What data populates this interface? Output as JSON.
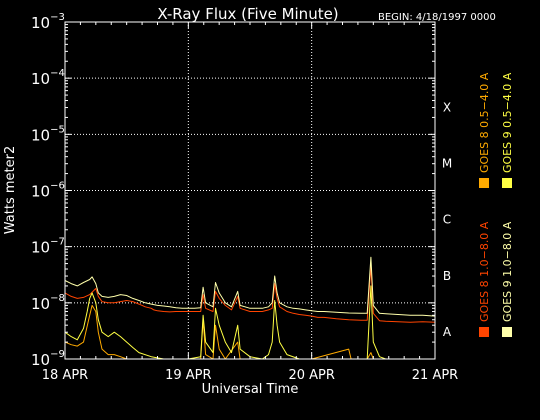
{
  "chart_data": {
    "type": "line",
    "title": "X-Ray Flux (Five Minute)",
    "begin_label": "BEGIN: 4/18/1997 0000",
    "xlabel": "Universal Time",
    "ylabel": "Watts meter2",
    "x_range_days": [
      0,
      3
    ],
    "x_ticks": [
      {
        "day": 0,
        "label": "18 APR"
      },
      {
        "day": 1,
        "label": "19 APR"
      },
      {
        "day": 2,
        "label": "20 APR"
      },
      {
        "day": 3,
        "label": "21 APR"
      }
    ],
    "y_scale": "log",
    "ylim": [
      1e-09,
      0.001
    ],
    "y_ticks": [
      {
        "exp": -3,
        "label": "10",
        "sup": "−3"
      },
      {
        "exp": -4,
        "label": "10",
        "sup": "−4"
      },
      {
        "exp": -5,
        "label": "10",
        "sup": "−5"
      },
      {
        "exp": -6,
        "label": "10",
        "sup": "−6"
      },
      {
        "exp": -7,
        "label": "10",
        "sup": "−7"
      },
      {
        "exp": -8,
        "label": "10",
        "sup": "−8"
      },
      {
        "exp": -9,
        "label": "10",
        "sup": "−9"
      }
    ],
    "flare_classes": [
      {
        "label": "X",
        "exp": -4
      },
      {
        "label": "M",
        "exp": -5
      },
      {
        "label": "C",
        "exp": -6
      },
      {
        "label": "B",
        "exp": -7
      },
      {
        "label": "A",
        "exp": -8
      }
    ],
    "grid": true,
    "series": [
      {
        "name": "GOES 8 1.0−8.0 A",
        "color": "#ff4400",
        "points": [
          [
            0.0,
            1.5e-08
          ],
          [
            0.05,
            1.3e-08
          ],
          [
            0.1,
            1.2e-08
          ],
          [
            0.15,
            1.25e-08
          ],
          [
            0.2,
            1.4e-08
          ],
          [
            0.25,
            1.8e-08
          ],
          [
            0.27,
            1.3e-08
          ],
          [
            0.3,
            1.05e-08
          ],
          [
            0.35,
            1e-08
          ],
          [
            0.4,
            1e-08
          ],
          [
            0.45,
            1.05e-08
          ],
          [
            0.5,
            1.1e-08
          ],
          [
            0.55,
            1.05e-08
          ],
          [
            0.6,
            9.5e-09
          ],
          [
            0.65,
            8.5e-09
          ],
          [
            0.7,
            8e-09
          ],
          [
            0.72,
            7.5e-09
          ],
          [
            0.75,
            7.2e-09
          ],
          [
            0.8,
            7e-09
          ],
          [
            0.85,
            6.9e-09
          ],
          [
            0.9,
            7e-09
          ],
          [
            0.95,
            7e-09
          ],
          [
            1.0,
            7e-09
          ],
          [
            1.05,
            7e-09
          ],
          [
            1.1,
            7e-09
          ],
          [
            1.12,
            1.4e-08
          ],
          [
            1.14,
            8e-09
          ],
          [
            1.2,
            7e-09
          ],
          [
            1.22,
            1.6e-08
          ],
          [
            1.25,
            1.2e-08
          ],
          [
            1.3,
            9e-09
          ],
          [
            1.35,
            7.5e-09
          ],
          [
            1.4,
            1.3e-08
          ],
          [
            1.42,
            8e-09
          ],
          [
            1.5,
            7e-09
          ],
          [
            1.55,
            7e-09
          ],
          [
            1.6,
            7e-09
          ],
          [
            1.65,
            7.5e-09
          ],
          [
            1.68,
            8e-09
          ],
          [
            1.7,
            2.2e-08
          ],
          [
            1.72,
            1.2e-08
          ],
          [
            1.74,
            8.5e-09
          ],
          [
            1.8,
            7e-09
          ],
          [
            1.85,
            6.5e-09
          ],
          [
            1.9,
            6.2e-09
          ],
          [
            1.95,
            6e-09
          ],
          [
            2.0,
            5.8e-09
          ],
          [
            2.05,
            5.5e-09
          ],
          [
            2.1,
            5.5e-09
          ],
          [
            2.2,
            5.2e-09
          ],
          [
            2.3,
            5e-09
          ],
          [
            2.4,
            4.9e-09
          ],
          [
            2.45,
            4.9e-09
          ],
          [
            2.48,
            4.5e-08
          ],
          [
            2.5,
            6.5e-09
          ],
          [
            2.55,
            4.8e-09
          ],
          [
            2.6,
            4.7e-09
          ],
          [
            2.7,
            4.6e-09
          ],
          [
            2.8,
            4.5e-09
          ],
          [
            2.9,
            4.6e-09
          ],
          [
            3.0,
            4.5e-09
          ]
        ]
      },
      {
        "name": "GOES 8 0.5−4.0 A",
        "color": "#ffaa00",
        "points": [
          [
            0.0,
            2e-09
          ],
          [
            0.05,
            1.8e-09
          ],
          [
            0.1,
            1.7e-09
          ],
          [
            0.15,
            2e-09
          ],
          [
            0.2,
            6e-09
          ],
          [
            0.22,
            9e-09
          ],
          [
            0.25,
            7e-09
          ],
          [
            0.27,
            3e-09
          ],
          [
            0.3,
            1.5e-09
          ],
          [
            0.35,
            1.2e-09
          ],
          [
            0.4,
            1.2e-09
          ],
          [
            0.45,
            1.1e-09
          ],
          [
            0.5,
            1e-09
          ],
          [
            0.6,
            1e-09
          ],
          [
            0.7,
            1e-09
          ],
          [
            0.8,
            1e-09
          ],
          [
            0.9,
            1e-09
          ],
          [
            1.0,
            1e-09
          ],
          [
            1.1,
            1e-09
          ],
          [
            1.12,
            5e-09
          ],
          [
            1.14,
            1.2e-09
          ],
          [
            1.2,
            1e-09
          ],
          [
            1.22,
            4e-09
          ],
          [
            1.25,
            1.5e-09
          ],
          [
            1.3,
            1e-09
          ],
          [
            1.4,
            2e-09
          ],
          [
            1.42,
            1e-09
          ],
          [
            1.5,
            1e-09
          ],
          [
            1.7,
            1e-09
          ],
          [
            1.72,
            1e-09
          ],
          [
            1.8,
            1e-09
          ],
          [
            1.9,
            1e-09
          ],
          [
            2.0,
            1e-09
          ],
          [
            2.3,
            1.5e-09
          ],
          [
            2.32,
            1e-09
          ],
          [
            2.45,
            1e-09
          ],
          [
            2.48,
            1.3e-09
          ],
          [
            2.5,
            1e-09
          ],
          [
            3.0,
            1e-09
          ]
        ]
      },
      {
        "name": "GOES 9 1.0−8.0 A",
        "color": "#ffffaa",
        "points": [
          [
            0.0,
            2.5e-08
          ],
          [
            0.05,
            2.2e-08
          ],
          [
            0.1,
            2e-08
          ],
          [
            0.15,
            2.3e-08
          ],
          [
            0.2,
            2.6e-08
          ],
          [
            0.22,
            2.9e-08
          ],
          [
            0.25,
            2.2e-08
          ],
          [
            0.27,
            1.5e-08
          ],
          [
            0.3,
            1.3e-08
          ],
          [
            0.35,
            1.25e-08
          ],
          [
            0.4,
            1.3e-08
          ],
          [
            0.45,
            1.4e-08
          ],
          [
            0.5,
            1.35e-08
          ],
          [
            0.55,
            1.2e-08
          ],
          [
            0.6,
            1.1e-08
          ],
          [
            0.65,
            1e-08
          ],
          [
            0.7,
            9.5e-09
          ],
          [
            0.75,
            9e-09
          ],
          [
            0.8,
            8.8e-09
          ],
          [
            0.85,
            8.5e-09
          ],
          [
            0.9,
            8.2e-09
          ],
          [
            0.95,
            8e-09
          ],
          [
            1.0,
            8e-09
          ],
          [
            1.05,
            8e-09
          ],
          [
            1.1,
            8.2e-09
          ],
          [
            1.12,
            1.9e-08
          ],
          [
            1.14,
            1e-08
          ],
          [
            1.2,
            8.5e-09
          ],
          [
            1.22,
            2.3e-08
          ],
          [
            1.25,
            1.5e-08
          ],
          [
            1.3,
            1e-08
          ],
          [
            1.35,
            8.5e-09
          ],
          [
            1.4,
            1.6e-08
          ],
          [
            1.42,
            9e-09
          ],
          [
            1.5,
            8e-09
          ],
          [
            1.55,
            8e-09
          ],
          [
            1.6,
            8e-09
          ],
          [
            1.65,
            8.5e-09
          ],
          [
            1.68,
            1e-08
          ],
          [
            1.7,
            3e-08
          ],
          [
            1.72,
            1.5e-08
          ],
          [
            1.74,
            1e-08
          ],
          [
            1.8,
            8.5e-09
          ],
          [
            1.85,
            8e-09
          ],
          [
            1.9,
            7.8e-09
          ],
          [
            1.95,
            7.5e-09
          ],
          [
            2.0,
            7.2e-09
          ],
          [
            2.05,
            7e-09
          ],
          [
            2.1,
            7e-09
          ],
          [
            2.2,
            6.8e-09
          ],
          [
            2.3,
            6.6e-09
          ],
          [
            2.4,
            6.5e-09
          ],
          [
            2.45,
            6.5e-09
          ],
          [
            2.48,
            6.5e-08
          ],
          [
            2.5,
            9e-09
          ],
          [
            2.55,
            6.5e-09
          ],
          [
            2.6,
            6.4e-09
          ],
          [
            2.7,
            6.2e-09
          ],
          [
            2.8,
            6e-09
          ],
          [
            2.9,
            6e-09
          ],
          [
            3.0,
            5.8e-09
          ]
        ]
      },
      {
        "name": "GOES 9 0.5−4.0 A",
        "color": "#ffff44",
        "points": [
          [
            0.0,
            3e-09
          ],
          [
            0.05,
            2.5e-09
          ],
          [
            0.1,
            2.2e-09
          ],
          [
            0.15,
            3.5e-09
          ],
          [
            0.18,
            7e-09
          ],
          [
            0.2,
            1.2e-08
          ],
          [
            0.22,
            1.5e-08
          ],
          [
            0.25,
            1e-08
          ],
          [
            0.27,
            5e-09
          ],
          [
            0.3,
            3e-09
          ],
          [
            0.35,
            2.5e-09
          ],
          [
            0.4,
            3e-09
          ],
          [
            0.45,
            2.5e-09
          ],
          [
            0.5,
            2e-09
          ],
          [
            0.55,
            1.6e-09
          ],
          [
            0.6,
            1.3e-09
          ],
          [
            0.7,
            1.1e-09
          ],
          [
            0.8,
            1e-09
          ],
          [
            1.0,
            1e-09
          ],
          [
            1.1,
            1.1e-09
          ],
          [
            1.12,
            6e-09
          ],
          [
            1.14,
            2e-09
          ],
          [
            1.2,
            1.3e-09
          ],
          [
            1.22,
            8e-09
          ],
          [
            1.25,
            4e-09
          ],
          [
            1.3,
            2e-09
          ],
          [
            1.35,
            1.3e-09
          ],
          [
            1.4,
            4e-09
          ],
          [
            1.42,
            1.5e-09
          ],
          [
            1.5,
            1.1e-09
          ],
          [
            1.6,
            1e-09
          ],
          [
            1.65,
            1.2e-09
          ],
          [
            1.68,
            2e-09
          ],
          [
            1.7,
            1.1e-08
          ],
          [
            1.72,
            4e-09
          ],
          [
            1.74,
            2e-09
          ],
          [
            1.8,
            1.2e-09
          ],
          [
            1.9,
            1e-09
          ],
          [
            2.0,
            1e-09
          ],
          [
            2.45,
            1e-09
          ],
          [
            2.48,
            2e-08
          ],
          [
            2.5,
            2e-09
          ],
          [
            2.55,
            1.1e-09
          ],
          [
            2.6,
            1e-09
          ],
          [
            3.0,
            1e-09
          ]
        ]
      }
    ]
  }
}
